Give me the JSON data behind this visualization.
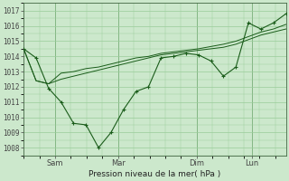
{
  "bg_color": "#cce8cc",
  "grid_color": "#99cc99",
  "line_color": "#1a5c1a",
  "ylabel": "Pression niveau de la mer( hPa )",
  "ylim": [
    1007.5,
    1017.5
  ],
  "yticks": [
    1008,
    1009,
    1010,
    1011,
    1012,
    1013,
    1014,
    1015,
    1016,
    1017
  ],
  "xtick_labels": [
    "Sam",
    "Mar",
    "Dim",
    "Lun"
  ],
  "xtick_positions": [
    0.12,
    0.36,
    0.66,
    0.87
  ],
  "series": [
    [
      1014.5,
      1013.9,
      1011.9,
      1011.0,
      1009.6,
      1009.5,
      1008.0,
      1009.0,
      1010.5,
      1011.7,
      1012.0,
      1013.9,
      1014.0,
      1014.2,
      1014.1,
      1013.7,
      1012.7,
      1013.3,
      1016.2,
      1015.8,
      1016.2,
      1016.8
    ],
    [
      1014.5,
      1012.4,
      1012.2,
      1012.5,
      1012.7,
      1012.9,
      1013.1,
      1013.3,
      1013.5,
      1013.7,
      1013.9,
      1014.1,
      1014.2,
      1014.3,
      1014.4,
      1014.5,
      1014.6,
      1014.8,
      1015.1,
      1015.4,
      1015.6,
      1015.8
    ],
    [
      1014.5,
      1012.4,
      1012.2,
      1012.9,
      1013.0,
      1013.2,
      1013.3,
      1013.5,
      1013.7,
      1013.9,
      1014.0,
      1014.2,
      1014.3,
      1014.4,
      1014.5,
      1014.65,
      1014.8,
      1015.0,
      1015.3,
      1015.6,
      1015.8,
      1016.1
    ]
  ],
  "n_points": 22
}
